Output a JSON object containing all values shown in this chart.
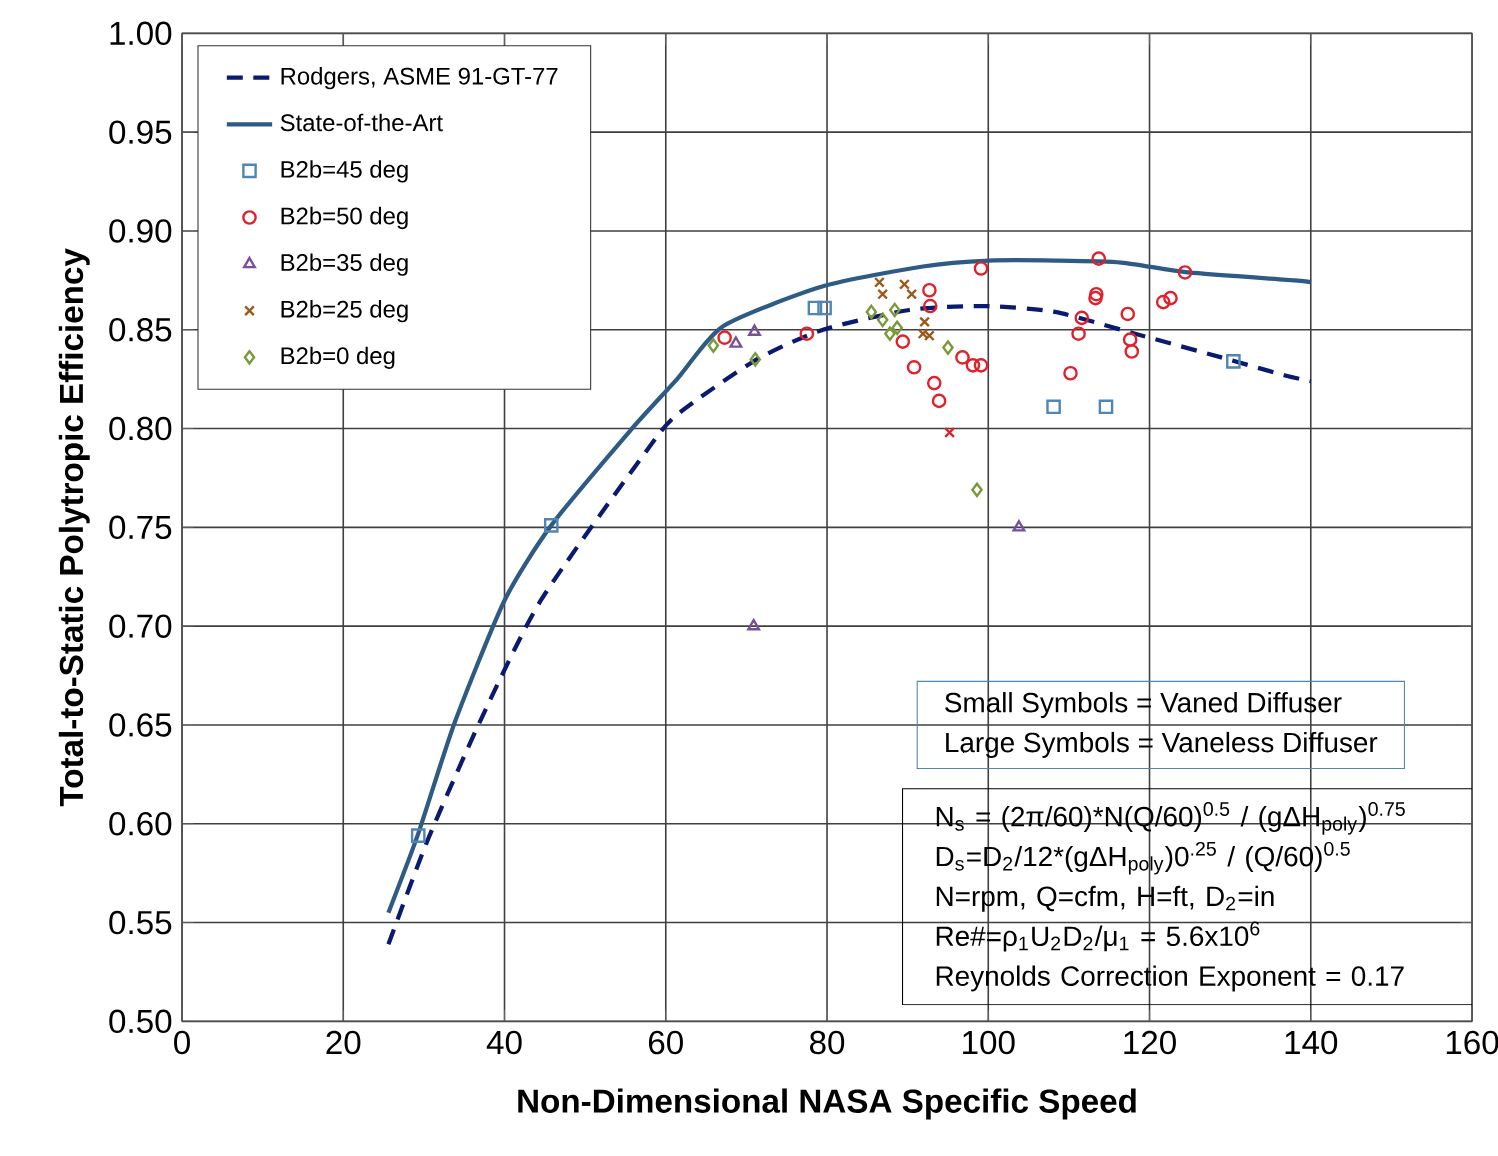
{
  "chart_data": {
    "type": "scatter",
    "xlabel": "Non-Dimensional NASA Specific Speed",
    "ylabel": "Total-to-Static Polytropic Efficiency",
    "xlim": [
      0,
      160
    ],
    "xticks": [
      0,
      20,
      40,
      60,
      80,
      100,
      120,
      140,
      160
    ],
    "ylim": [
      0.5,
      1.0
    ],
    "yticks": [
      {
        "value": 0.5,
        "label": "0.50"
      },
      {
        "value": 0.55,
        "label": "0.55"
      },
      {
        "value": 0.6,
        "label": "0.60"
      },
      {
        "value": 0.65,
        "label": "0.65"
      },
      {
        "value": 0.7,
        "label": "0.70"
      },
      {
        "value": 0.75,
        "label": "0.75"
      },
      {
        "value": 0.8,
        "label": "0.80"
      },
      {
        "value": 0.85,
        "label": "0.85"
      },
      {
        "value": 0.9,
        "label": "0.90"
      },
      {
        "value": 0.95,
        "label": "0.95"
      },
      {
        "value": 1.0,
        "label": "1.00"
      }
    ],
    "grid": true,
    "legend": "top left",
    "series": [
      {
        "name": "Rodgers, ASME 91-GT-77",
        "type": "line",
        "line_style": "dashed",
        "marker": "none",
        "color": "#0a1a6e",
        "x": [
          25.6,
          30.5,
          37.1,
          44.5,
          57.3,
          61.4,
          71.3,
          79.5,
          90.2,
          99.3,
          108.3,
          118.2,
          128.9,
          136.7,
          140
        ],
        "values": [
          0.539,
          0.592,
          0.653,
          0.713,
          0.787,
          0.807,
          0.835,
          0.85,
          0.86,
          0.862,
          0.859,
          0.848,
          0.836,
          0.827,
          0.824
        ]
      },
      {
        "name": "State-of-the-Art",
        "type": "line",
        "line_style": "solid",
        "marker": "none",
        "color": "#2e5b84",
        "x": [
          25.6,
          29.3,
          33.8,
          40.0,
          45.8,
          55.6,
          61.4,
          67.2,
          79.5,
          91.9,
          100.1,
          108.3,
          116.5,
          124.8,
          138.0,
          140
        ],
        "values": [
          0.555,
          0.595,
          0.651,
          0.713,
          0.751,
          0.799,
          0.825,
          0.852,
          0.872,
          0.882,
          0.885,
          0.885,
          0.884,
          0.879,
          0.875,
          0.874
        ]
      },
      {
        "name": "B2b=45 deg",
        "marker": "square",
        "color": "#4f86b5",
        "x": [
          29.3,
          45.8,
          78.5,
          79.7,
          108.1,
          114.6,
          130.4
        ],
        "values": [
          0.594,
          0.751,
          0.861,
          0.861,
          0.811,
          0.811,
          0.834
        ]
      },
      {
        "name": "B2b=50 deg",
        "marker": "circle",
        "color": "#e0202a",
        "x": [
          67.3,
          77.5,
          92.7,
          92.8,
          89.4,
          90.8,
          93.3,
          93.9,
          96.8,
          98.1,
          99.1,
          99.1,
          113.7,
          113.4,
          113.3,
          111.6,
          111.2,
          110.2,
          117.3,
          117.6,
          117.8,
          121.7,
          122.6,
          124.4
        ],
        "values": [
          0.846,
          0.848,
          0.87,
          0.862,
          0.844,
          0.831,
          0.823,
          0.814,
          0.836,
          0.832,
          0.832,
          0.881,
          0.886,
          0.868,
          0.866,
          0.856,
          0.848,
          0.828,
          0.858,
          0.845,
          0.839,
          0.864,
          0.866,
          0.879
        ]
      },
      {
        "name": "B2b=35 deg",
        "marker": "triangle",
        "color": "#7a4f9a",
        "x": [
          68.7,
          71.0,
          103.8,
          70.9
        ],
        "values": [
          0.843,
          0.849,
          0.75,
          0.7
        ]
      },
      {
        "name": "B2b=25 deg",
        "marker": "cross",
        "color": "#9c5a1a",
        "x": [
          86.5,
          86.9,
          89.6,
          90.5,
          92.1,
          91.9,
          92.7
        ],
        "values": [
          0.874,
          0.868,
          0.873,
          0.868,
          0.854,
          0.848,
          0.847
        ]
      },
      {
        "name": "B2b=0 deg",
        "marker": "diamond",
        "color": "#7a9a3a",
        "x": [
          65.9,
          71.1,
          85.5,
          86.9,
          88.4,
          87.8,
          88.7,
          95.0,
          98.6
        ],
        "values": [
          0.842,
          0.835,
          0.859,
          0.855,
          0.86,
          0.848,
          0.851,
          0.841,
          0.769
        ]
      },
      {
        "marker": "cross",
        "color": "#e0202a",
        "x": [
          95.2
        ],
        "values": [
          0.798
        ]
      }
    ],
    "annotations": [
      "Small Symbols = Vaned Diffuser",
      "Large Symbols = Vaneless Diffuser",
      "N$_{s}$ = (2π/60)*N(Q/60)$^{0.5}$  / (gΔH$_{poly}$)$^{0.75}$",
      "D$_{s}$=D$_{2}$/12*(gΔH$_{poly}$)0$^{.25}$ / (Q/60)$^{0.5}$",
      "N=rpm, Q=cfm, H=ft, D$_{2}$=in",
      "Re#=ρ$_{1}$U$_{2}$D$_{2}$/μ$_{1}$ = 5.6x10$^{6}$",
      "Reynolds Correction Exponent = 0.17"
    ]
  }
}
